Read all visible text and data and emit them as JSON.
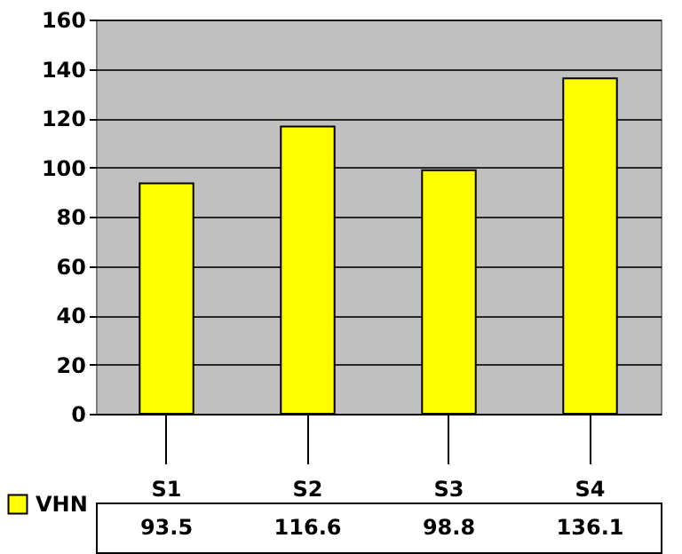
{
  "chart_data": {
    "type": "bar",
    "categories": [
      "S1",
      "S2",
      "S3",
      "S4"
    ],
    "series": [
      {
        "name": "VHN",
        "color": "#ffff00",
        "values": [
          93.5,
          116.6,
          98.8,
          136.1
        ]
      }
    ],
    "ylim": [
      0,
      160
    ],
    "yticks": [
      0,
      20,
      40,
      60,
      80,
      100,
      120,
      140,
      160
    ],
    "grid": "y",
    "data_labels": true,
    "legend": "bottom left"
  }
}
